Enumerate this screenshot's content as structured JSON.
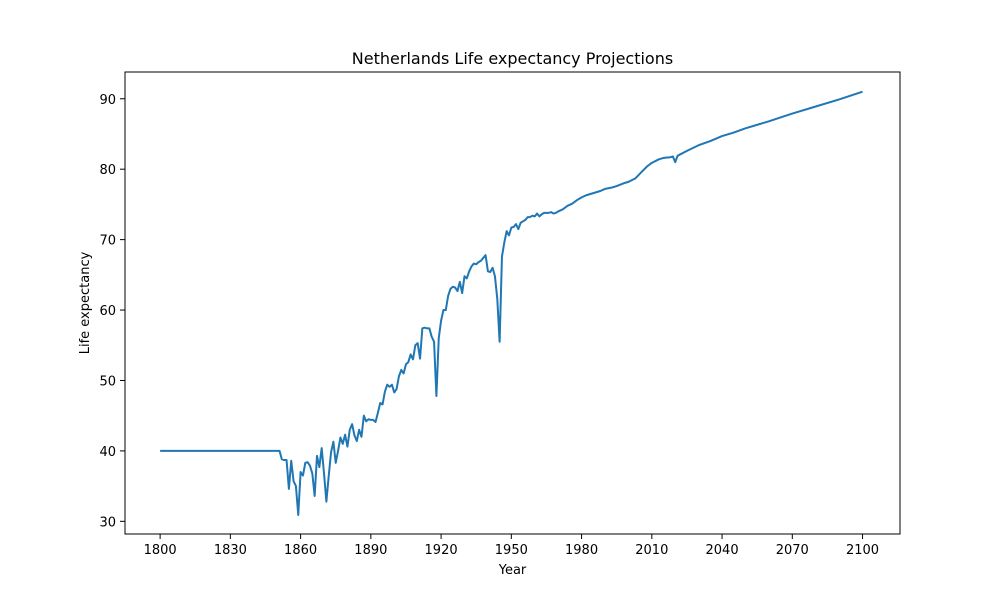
{
  "chart_data": {
    "type": "line",
    "title": "Netherlands Life expectancy Projections",
    "xlabel": "Year",
    "ylabel": "Life expectancy",
    "xlim": [
      1785,
      2116
    ],
    "ylim": [
      28.2,
      93.8
    ],
    "xticks": [
      1800,
      1830,
      1860,
      1890,
      1920,
      1950,
      1980,
      2010,
      2040,
      2070,
      2100
    ],
    "yticks": [
      30,
      40,
      50,
      60,
      70,
      80,
      90
    ],
    "grid": false,
    "legend": "none",
    "series": [
      {
        "color": "#1f77b4",
        "points": [
          [
            1800,
            40.0
          ],
          [
            1810,
            40.0
          ],
          [
            1820,
            40.0
          ],
          [
            1830,
            40.0
          ],
          [
            1840,
            40.0
          ],
          [
            1850,
            40.0
          ],
          [
            1851,
            40.0
          ],
          [
            1852,
            38.8
          ],
          [
            1853,
            38.7
          ],
          [
            1854,
            38.7
          ],
          [
            1855,
            34.6
          ],
          [
            1856,
            38.6
          ],
          [
            1857,
            35.7
          ],
          [
            1858,
            35.0
          ],
          [
            1859,
            30.9
          ],
          [
            1860,
            37.0
          ],
          [
            1861,
            36.5
          ],
          [
            1862,
            38.3
          ],
          [
            1863,
            38.4
          ],
          [
            1864,
            37.9
          ],
          [
            1865,
            36.8
          ],
          [
            1866,
            33.6
          ],
          [
            1867,
            39.3
          ],
          [
            1868,
            37.7
          ],
          [
            1869,
            40.4
          ],
          [
            1870,
            36.8
          ],
          [
            1871,
            32.8
          ],
          [
            1872,
            36.4
          ],
          [
            1873,
            39.8
          ],
          [
            1874,
            41.3
          ],
          [
            1875,
            38.3
          ],
          [
            1876,
            40.0
          ],
          [
            1877,
            41.9
          ],
          [
            1878,
            41.0
          ],
          [
            1879,
            42.3
          ],
          [
            1880,
            40.6
          ],
          [
            1881,
            43.0
          ],
          [
            1882,
            43.8
          ],
          [
            1883,
            42.2
          ],
          [
            1884,
            41.4
          ],
          [
            1885,
            43.0
          ],
          [
            1886,
            42.0
          ],
          [
            1887,
            45.0
          ],
          [
            1888,
            44.2
          ],
          [
            1889,
            44.5
          ],
          [
            1890,
            44.4
          ],
          [
            1891,
            44.4
          ],
          [
            1892,
            44.1
          ],
          [
            1893,
            45.4
          ],
          [
            1894,
            46.8
          ],
          [
            1895,
            46.6
          ],
          [
            1896,
            48.4
          ],
          [
            1897,
            49.4
          ],
          [
            1898,
            49.1
          ],
          [
            1899,
            49.4
          ],
          [
            1900,
            48.3
          ],
          [
            1901,
            48.8
          ],
          [
            1902,
            50.6
          ],
          [
            1903,
            51.5
          ],
          [
            1904,
            51.0
          ],
          [
            1905,
            52.3
          ],
          [
            1906,
            52.6
          ],
          [
            1907,
            53.7
          ],
          [
            1908,
            53.0
          ],
          [
            1909,
            55.0
          ],
          [
            1910,
            55.3
          ],
          [
            1911,
            53.1
          ],
          [
            1912,
            57.4
          ],
          [
            1913,
            57.5
          ],
          [
            1914,
            57.4
          ],
          [
            1915,
            57.4
          ],
          [
            1916,
            56.2
          ],
          [
            1917,
            55.5
          ],
          [
            1918,
            47.8
          ],
          [
            1919,
            56.0
          ],
          [
            1920,
            58.5
          ],
          [
            1921,
            60.0
          ],
          [
            1922,
            60.0
          ],
          [
            1923,
            62.0
          ],
          [
            1924,
            63.0
          ],
          [
            1925,
            63.3
          ],
          [
            1926,
            63.2
          ],
          [
            1927,
            62.7
          ],
          [
            1928,
            64.0
          ],
          [
            1929,
            62.4
          ],
          [
            1930,
            64.8
          ],
          [
            1931,
            64.5
          ],
          [
            1932,
            65.5
          ],
          [
            1933,
            66.2
          ],
          [
            1934,
            66.6
          ],
          [
            1935,
            66.5
          ],
          [
            1936,
            66.8
          ],
          [
            1937,
            67.0
          ],
          [
            1938,
            67.4
          ],
          [
            1939,
            67.8
          ],
          [
            1940,
            65.5
          ],
          [
            1941,
            65.4
          ],
          [
            1942,
            66.0
          ],
          [
            1943,
            64.8
          ],
          [
            1944,
            61.6
          ],
          [
            1945,
            55.5
          ],
          [
            1946,
            67.6
          ],
          [
            1947,
            69.6
          ],
          [
            1948,
            71.2
          ],
          [
            1949,
            70.6
          ],
          [
            1950,
            71.7
          ],
          [
            1951,
            71.8
          ],
          [
            1952,
            72.2
          ],
          [
            1953,
            71.5
          ],
          [
            1954,
            72.4
          ],
          [
            1955,
            72.6
          ],
          [
            1956,
            72.8
          ],
          [
            1957,
            73.2
          ],
          [
            1958,
            73.2
          ],
          [
            1959,
            73.4
          ],
          [
            1960,
            73.3
          ],
          [
            1961,
            73.7
          ],
          [
            1962,
            73.3
          ],
          [
            1963,
            73.6
          ],
          [
            1964,
            73.8
          ],
          [
            1965,
            73.8
          ],
          [
            1966,
            73.8
          ],
          [
            1967,
            73.9
          ],
          [
            1968,
            73.7
          ],
          [
            1969,
            73.8
          ],
          [
            1970,
            74.0
          ],
          [
            1972,
            74.3
          ],
          [
            1974,
            74.8
          ],
          [
            1976,
            75.1
          ],
          [
            1978,
            75.6
          ],
          [
            1980,
            76.0
          ],
          [
            1982,
            76.3
          ],
          [
            1985,
            76.6
          ],
          [
            1988,
            76.9
          ],
          [
            1990,
            77.2
          ],
          [
            1993,
            77.4
          ],
          [
            1995,
            77.6
          ],
          [
            1998,
            78.0
          ],
          [
            2000,
            78.2
          ],
          [
            2003,
            78.7
          ],
          [
            2005,
            79.4
          ],
          [
            2008,
            80.4
          ],
          [
            2010,
            80.9
          ],
          [
            2013,
            81.4
          ],
          [
            2015,
            81.6
          ],
          [
            2018,
            81.7
          ],
          [
            2019,
            81.8
          ],
          [
            2020,
            81.0
          ],
          [
            2021,
            81.9
          ],
          [
            2025,
            82.6
          ],
          [
            2030,
            83.4
          ],
          [
            2035,
            84.0
          ],
          [
            2040,
            84.7
          ],
          [
            2045,
            85.2
          ],
          [
            2050,
            85.8
          ],
          [
            2060,
            86.8
          ],
          [
            2070,
            87.9
          ],
          [
            2080,
            88.9
          ],
          [
            2090,
            89.9
          ],
          [
            2100,
            91.0
          ]
        ]
      }
    ]
  }
}
